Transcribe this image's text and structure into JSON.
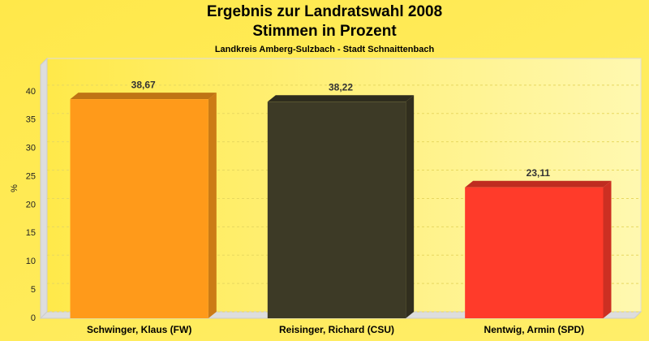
{
  "chart_data": {
    "type": "bar3d",
    "title": "Ergebnis zur Landratswahl 2008",
    "subtitle": "Stimmen in Prozent",
    "caption": "Landkreis Amberg-Sulzbach - Stadt Schnaittenbach",
    "y_label": "%",
    "categories": [
      "Schwinger, Klaus (FW)",
      "Reisinger, Richard (CSU)",
      "Nentwig, Armin (SPD)"
    ],
    "values": [
      38.67,
      38.22,
      23.11
    ],
    "value_labels": [
      "38,67",
      "38,22",
      "23,11"
    ],
    "colors": [
      "#ff9a1a",
      "#3d3a26",
      "#ff3b2a"
    ],
    "ylim": [
      0,
      45
    ],
    "yticks": [
      0,
      5,
      10,
      15,
      20,
      25,
      30,
      35,
      40
    ],
    "grid": true
  }
}
